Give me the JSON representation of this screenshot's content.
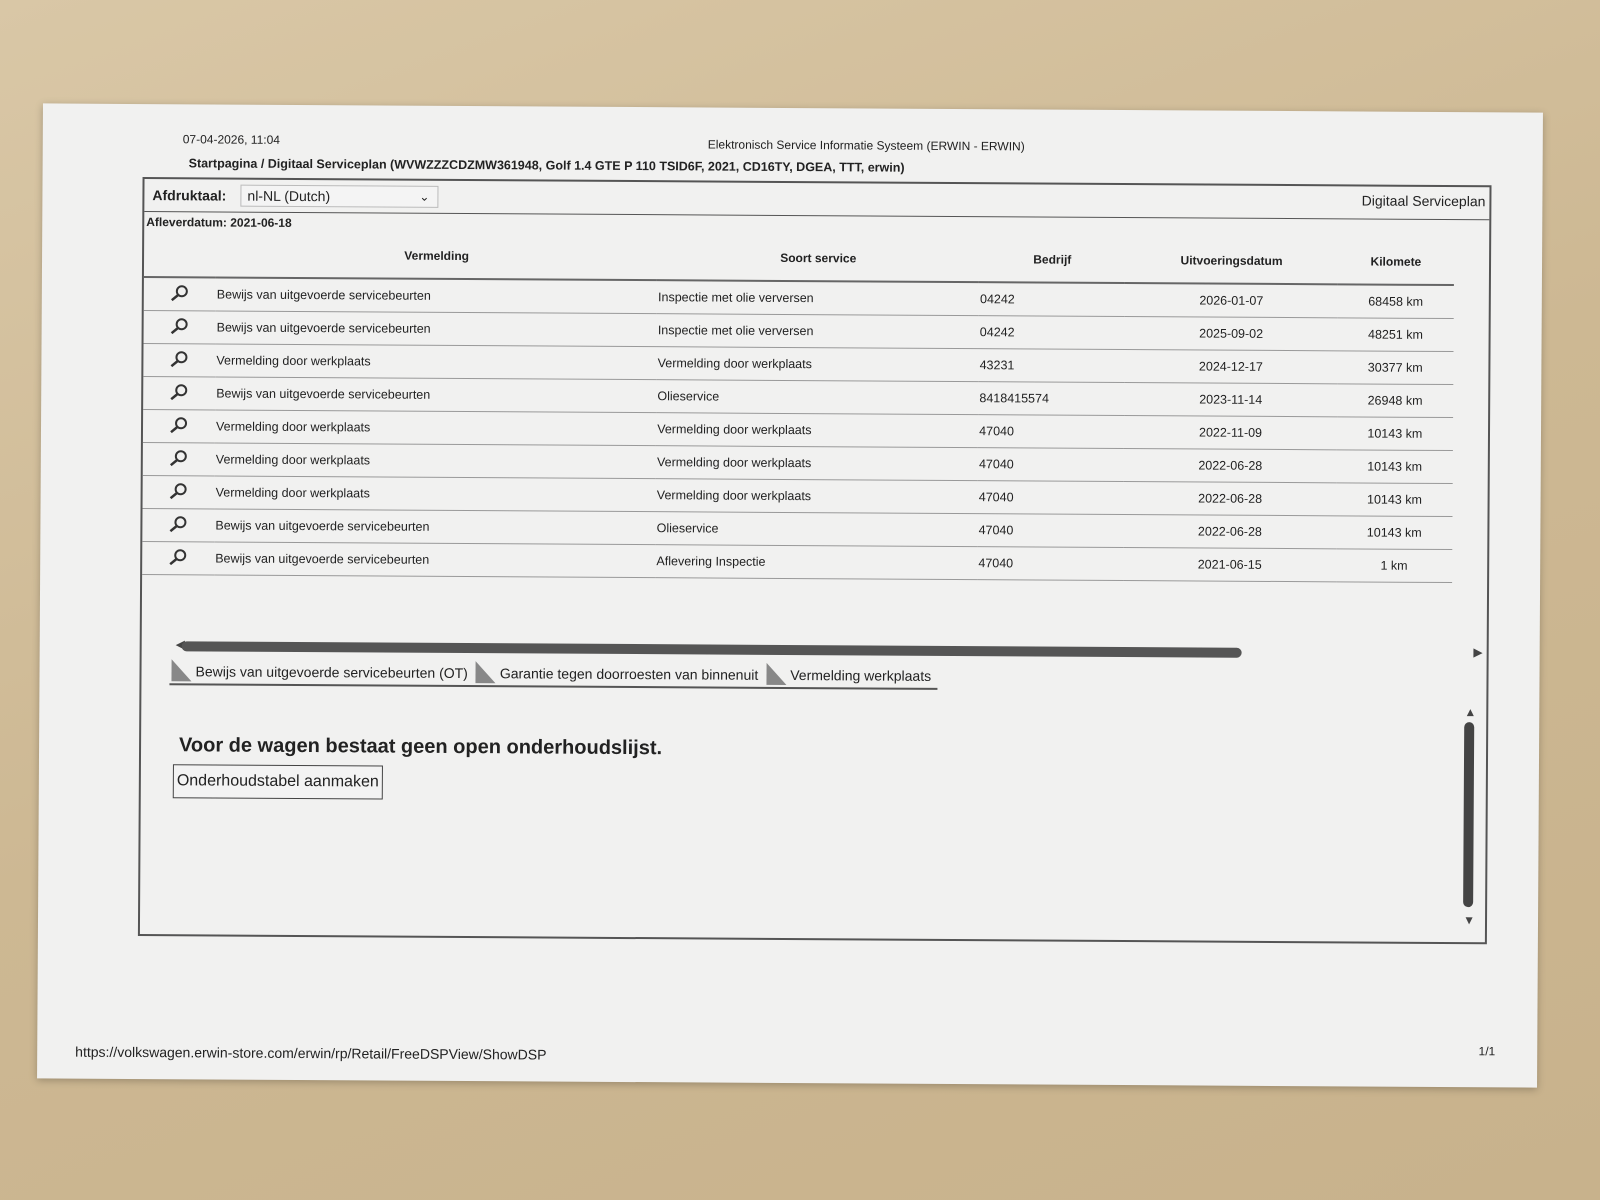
{
  "header": {
    "datetime": "07-04-2026, 11:04",
    "system": "Elektronisch Service Informatie Systeem (ERWIN - ERWIN)"
  },
  "breadcrumb": "Startpagina / Digitaal Serviceplan (WVWZZZCDZMW361948, Golf 1.4 GTE P 110 TSID6F, 2021, CD16TY, DGEA, TTT, erwin)",
  "toolbar": {
    "language_label": "Afdruktaal:",
    "language_value": "nl-NL (Dutch)",
    "title": "Digitaal Serviceplan"
  },
  "delivery_date": "Afleverdatum: 2021-06-18",
  "table": {
    "columns": [
      "Vermelding",
      "Soort service",
      "Bedrijf",
      "Uitvoeringsdatum",
      "Kilomete"
    ],
    "rows": [
      {
        "entry": "Bewijs van uitgevoerde servicebeurten",
        "service": "Inspectie met olie verversen",
        "company": "04242",
        "date": "2026-01-07",
        "km": "68458 km"
      },
      {
        "entry": "Bewijs van uitgevoerde servicebeurten",
        "service": "Inspectie met olie verversen",
        "company": "04242",
        "date": "2025-09-02",
        "km": "48251 km"
      },
      {
        "entry": "Vermelding door werkplaats",
        "service": "Vermelding door werkplaats",
        "company": "43231",
        "date": "2024-12-17",
        "km": "30377 km"
      },
      {
        "entry": "Bewijs van uitgevoerde servicebeurten",
        "service": "Olieservice",
        "company": "8418415574",
        "date": "2023-11-14",
        "km": "26948 km"
      },
      {
        "entry": "Vermelding door werkplaats",
        "service": "Vermelding door werkplaats",
        "company": "47040",
        "date": "2022-11-09",
        "km": "10143 km"
      },
      {
        "entry": "Vermelding door werkplaats",
        "service": "Vermelding door werkplaats",
        "company": "47040",
        "date": "2022-06-28",
        "km": "10143 km"
      },
      {
        "entry": "Vermelding door werkplaats",
        "service": "Vermelding door werkplaats",
        "company": "47040",
        "date": "2022-06-28",
        "km": "10143 km"
      },
      {
        "entry": "Bewijs van uitgevoerde servicebeurten",
        "service": "Olieservice",
        "company": "47040",
        "date": "2022-06-28",
        "km": "10143 km"
      },
      {
        "entry": "Bewijs van uitgevoerde servicebeurten",
        "service": "Aflevering Inspectie",
        "company": "47040",
        "date": "2021-06-15",
        "km": "1 km"
      }
    ]
  },
  "tabs": [
    "Bewijs van uitgevoerde servicebeurten (OT)",
    "Garantie tegen doorroesten van binnenuit",
    "Vermelding werkplaats"
  ],
  "message": "Voor de wagen bestaat geen open onderhoudslijst.",
  "create_button": "Onderhoudstabel aanmaken",
  "footer": {
    "url": "https://volkswagen.erwin-store.com/erwin/rp/Retail/FreeDSPView/ShowDSP",
    "page": "1/1"
  }
}
